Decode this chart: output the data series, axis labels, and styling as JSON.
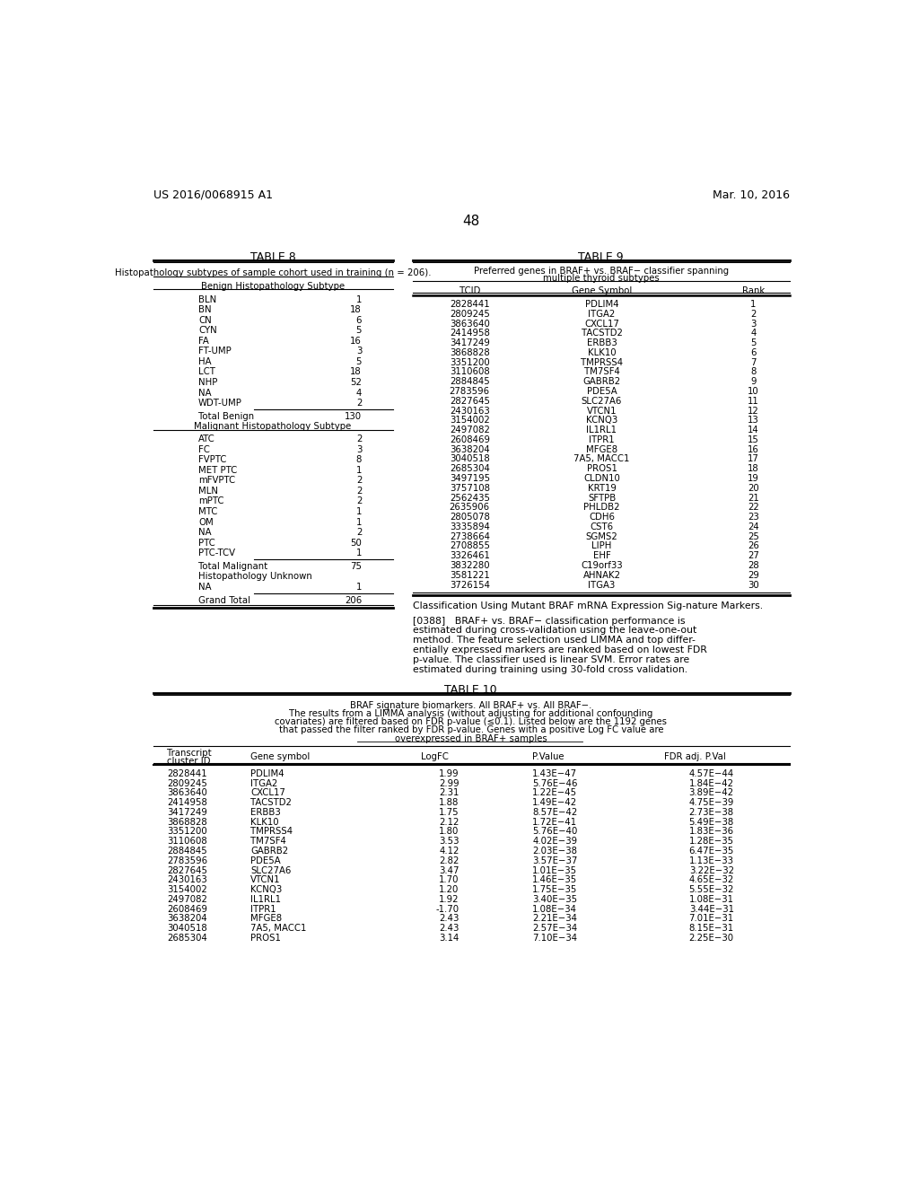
{
  "header_left": "US 2016/0068915 A1",
  "header_right": "Mar. 10, 2016",
  "page_number": "48",
  "table8_title": "TABLE 8",
  "table8_subtitle": "Histopathology subtypes of sample cohort used in training (n = 206).",
  "table8_benign_header": "Benign Histopathology Subtype",
  "table8_benign_rows": [
    [
      "BLN",
      "1"
    ],
    [
      "BN",
      "18"
    ],
    [
      "CN",
      "6"
    ],
    [
      "CYN",
      "5"
    ],
    [
      "FA",
      "16"
    ],
    [
      "FT-UMP",
      "3"
    ],
    [
      "HA",
      "5"
    ],
    [
      "LCT",
      "18"
    ],
    [
      "NHP",
      "52"
    ],
    [
      "NA",
      "4"
    ],
    [
      "WDT-UMP",
      "2"
    ]
  ],
  "table8_total_benign": [
    "Total Benign",
    "130"
  ],
  "table8_malignant_header": "Malignant Histopathology Subtype",
  "table8_malignant_rows": [
    [
      "ATC",
      "2"
    ],
    [
      "FC",
      "3"
    ],
    [
      "FVPTC",
      "8"
    ],
    [
      "MET PTC",
      "1"
    ],
    [
      "mFVPTC",
      "2"
    ],
    [
      "MLN",
      "2"
    ],
    [
      "mPTC",
      "2"
    ],
    [
      "MTC",
      "1"
    ],
    [
      "OM",
      "1"
    ],
    [
      "NA",
      "2"
    ],
    [
      "PTC",
      "50"
    ],
    [
      "PTC-TCV",
      "1"
    ]
  ],
  "table8_total_malignant": [
    "Total Malignant",
    "75"
  ],
  "table8_histopath_unknown": "Histopathology Unknown",
  "table8_na_unknown": [
    "NA",
    "1"
  ],
  "table8_grand_total": [
    "Grand Total",
    "206"
  ],
  "table9_title": "TABLE 9",
  "table9_subtitle1": "Preferred genes in BRAF+ vs. BRAF− classifier spanning",
  "table9_subtitle2": "multiple thyroid subtypes",
  "table9_headers": [
    "TCID",
    "Gene Symbol",
    "Rank"
  ],
  "table9_rows": [
    [
      "2828441",
      "PDLIM4",
      "1"
    ],
    [
      "2809245",
      "ITGA2",
      "2"
    ],
    [
      "3863640",
      "CXCL17",
      "3"
    ],
    [
      "2414958",
      "TACSTD2",
      "4"
    ],
    [
      "3417249",
      "ERBB3",
      "5"
    ],
    [
      "3868828",
      "KLK10",
      "6"
    ],
    [
      "3351200",
      "TMPRSS4",
      "7"
    ],
    [
      "3110608",
      "TM7SF4",
      "8"
    ],
    [
      "2884845",
      "GABRB2",
      "9"
    ],
    [
      "2783596",
      "PDE5A",
      "10"
    ],
    [
      "2827645",
      "SLC27A6",
      "11"
    ],
    [
      "2430163",
      "VTCN1",
      "12"
    ],
    [
      "3154002",
      "KCNQ3",
      "13"
    ],
    [
      "2497082",
      "IL1RL1",
      "14"
    ],
    [
      "2608469",
      "ITPR1",
      "15"
    ],
    [
      "3638204",
      "MFGE8",
      "16"
    ],
    [
      "3040518",
      "7A5, MACC1",
      "17"
    ],
    [
      "2685304",
      "PROS1",
      "18"
    ],
    [
      "3497195",
      "CLDN10",
      "19"
    ],
    [
      "3757108",
      "KRT19",
      "20"
    ],
    [
      "2562435",
      "SFTPB",
      "21"
    ],
    [
      "2635906",
      "PHLDB2",
      "22"
    ],
    [
      "2805078",
      "CDH6",
      "23"
    ],
    [
      "3335894",
      "CST6",
      "24"
    ],
    [
      "2738664",
      "SGMS2",
      "25"
    ],
    [
      "2708855",
      "LIPH",
      "26"
    ],
    [
      "3326461",
      "EHF",
      "27"
    ],
    [
      "3832280",
      "C19orf33",
      "28"
    ],
    [
      "3581221",
      "AHNAK2",
      "29"
    ],
    [
      "3726154",
      "ITGA3",
      "30"
    ]
  ],
  "paragraph_title": "Classification Using Mutant BRAF mRNA Expression Sig-nature Markers.",
  "paragraph_lines": [
    "[0388]   BRAF+ vs. BRAF− classification performance is",
    "estimated during cross-validation using the leave-one-out",
    "method. The feature selection used LIMMA and top differ-",
    "entially expressed markers are ranked based on lowest FDR",
    "p-value. The classifier used is linear SVM. Error rates are",
    "estimated during training using 30-fold cross validation."
  ],
  "table10_title": "TABLE 10",
  "table10_subtitle1": "BRAF signature biomarkers. All BRAF+ vs. All BRAF−.",
  "table10_subtitle2": "The results from a LIMMA analysis (without adjusting for additional confounding",
  "table10_subtitle3": "covariates) are filtered based on FDR p-value (≤0.1). Listed below are the 1192 genes",
  "table10_subtitle4": "that passed the filter ranked by FDR p-value. Genes with a positive Log FC value are",
  "table10_subtitle5": "overexpressed in BRAF+ samples",
  "table10_rows": [
    [
      "2828441",
      "PDLIM4",
      "1.99",
      "1.43E−47",
      "4.57E−44"
    ],
    [
      "2809245",
      "ITGA2",
      "2.99",
      "5.76E−46",
      "1.84E−42"
    ],
    [
      "3863640",
      "CXCL17",
      "2.31",
      "1.22E−45",
      "3.89E−42"
    ],
    [
      "2414958",
      "TACSTD2",
      "1.88",
      "1.49E−42",
      "4.75E−39"
    ],
    [
      "3417249",
      "ERBB3",
      "1.75",
      "8.57E−42",
      "2.73E−38"
    ],
    [
      "3868828",
      "KLK10",
      "2.12",
      "1.72E−41",
      "5.49E−38"
    ],
    [
      "3351200",
      "TMPRSS4",
      "1.80",
      "5.76E−40",
      "1.83E−36"
    ],
    [
      "3110608",
      "TM7SF4",
      "3.53",
      "4.02E−39",
      "1.28E−35"
    ],
    [
      "2884845",
      "GABRB2",
      "4.12",
      "2.03E−38",
      "6.47E−35"
    ],
    [
      "2783596",
      "PDE5A",
      "2.82",
      "3.57E−37",
      "1.13E−33"
    ],
    [
      "2827645",
      "SLC27A6",
      "3.47",
      "1.01E−35",
      "3.22E−32"
    ],
    [
      "2430163",
      "VTCN1",
      "1.70",
      "1.46E−35",
      "4.65E−32"
    ],
    [
      "3154002",
      "KCNQ3",
      "1.20",
      "1.75E−35",
      "5.55E−32"
    ],
    [
      "2497082",
      "IL1RL1",
      "1.92",
      "3.40E−35",
      "1.08E−31"
    ],
    [
      "2608469",
      "ITPR1",
      "-1.70",
      "1.08E−34",
      "3.44E−31"
    ],
    [
      "3638204",
      "MFGE8",
      "2.43",
      "2.21E−34",
      "7.01E−31"
    ],
    [
      "3040518",
      "7A5, MACC1",
      "2.43",
      "2.57E−34",
      "8.15E−31"
    ],
    [
      "2685304",
      "PROS1",
      "3.14",
      "7.10E−34",
      "2.25E−30"
    ]
  ]
}
